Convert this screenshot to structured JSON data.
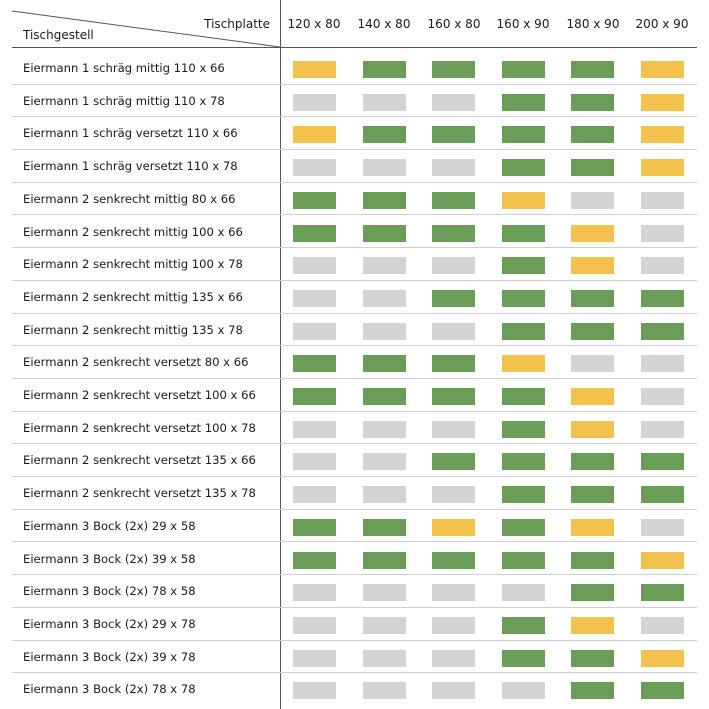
{
  "header": {
    "corner_top": "Tischplatte",
    "corner_bottom": "Tischgestell",
    "columns": [
      "120 x 80",
      "140 x 80",
      "160 x 80",
      "160 x 90",
      "180 x 90",
      "200 x 90"
    ]
  },
  "colors": {
    "green": "#6a9e58",
    "yellow": "#f3c24c",
    "gray": "#d4d4d4"
  },
  "rows": [
    {
      "label": "Eiermann 1 schräg mittig 110 x 66",
      "cells": [
        "yellow",
        "green",
        "green",
        "green",
        "green",
        "yellow"
      ]
    },
    {
      "label": "Eiermann 1 schräg mittig 110 x 78",
      "cells": [
        "gray",
        "gray",
        "gray",
        "green",
        "green",
        "yellow"
      ]
    },
    {
      "label": "Eiermann 1 schräg versetzt 110 x 66",
      "cells": [
        "yellow",
        "green",
        "green",
        "green",
        "green",
        "yellow"
      ]
    },
    {
      "label": "Eiermann 1 schräg versetzt 110 x 78",
      "cells": [
        "gray",
        "gray",
        "gray",
        "green",
        "green",
        "yellow"
      ]
    },
    {
      "label": "Eiermann 2 senkrecht mittig 80 x 66",
      "cells": [
        "green",
        "green",
        "green",
        "yellow",
        "gray",
        "gray"
      ]
    },
    {
      "label": "Eiermann 2 senkrecht mittig 100 x 66",
      "cells": [
        "green",
        "green",
        "green",
        "green",
        "yellow",
        "gray"
      ]
    },
    {
      "label": "Eiermann 2 senkrecht mittig 100 x 78",
      "cells": [
        "gray",
        "gray",
        "gray",
        "green",
        "yellow",
        "gray"
      ]
    },
    {
      "label": "Eiermann 2 senkrecht mittig 135 x 66",
      "cells": [
        "gray",
        "gray",
        "green",
        "green",
        "green",
        "green"
      ]
    },
    {
      "label": "Eiermann 2 senkrecht mittig 135 x 78",
      "cells": [
        "gray",
        "gray",
        "gray",
        "green",
        "green",
        "green"
      ]
    },
    {
      "label": "Eiermann 2 senkrecht versetzt 80 x 66",
      "cells": [
        "green",
        "green",
        "green",
        "yellow",
        "gray",
        "gray"
      ]
    },
    {
      "label": "Eiermann 2 senkrecht versetzt 100 x 66",
      "cells": [
        "green",
        "green",
        "green",
        "green",
        "yellow",
        "gray"
      ]
    },
    {
      "label": "Eiermann 2 senkrecht versetzt 100 x 78",
      "cells": [
        "gray",
        "gray",
        "gray",
        "green",
        "yellow",
        "gray"
      ]
    },
    {
      "label": "Eiermann 2 senkrecht versetzt 135 x 66",
      "cells": [
        "gray",
        "gray",
        "green",
        "green",
        "green",
        "green"
      ]
    },
    {
      "label": "Eiermann 2 senkrecht versetzt 135 x 78",
      "cells": [
        "gray",
        "gray",
        "gray",
        "green",
        "green",
        "green"
      ]
    },
    {
      "label": "Eiermann 3 Bock (2x) 29 x 58",
      "cells": [
        "green",
        "green",
        "yellow",
        "green",
        "yellow",
        "gray"
      ]
    },
    {
      "label": "Eiermann 3 Bock (2x) 39 x 58",
      "cells": [
        "green",
        "green",
        "green",
        "green",
        "green",
        "yellow"
      ]
    },
    {
      "label": "Eiermann 3 Bock (2x) 78 x 58",
      "cells": [
        "gray",
        "gray",
        "gray",
        "gray",
        "green",
        "green"
      ]
    },
    {
      "label": "Eiermann 3 Bock (2x) 29 x 78",
      "cells": [
        "gray",
        "gray",
        "gray",
        "green",
        "yellow",
        "gray"
      ]
    },
    {
      "label": "Eiermann 3 Bock (2x) 39 x 78",
      "cells": [
        "gray",
        "gray",
        "gray",
        "green",
        "green",
        "yellow"
      ]
    },
    {
      "label": "Eiermann 3 Bock (2x) 78 x 78",
      "cells": [
        "gray",
        "gray",
        "gray",
        "gray",
        "green",
        "green"
      ]
    }
  ]
}
